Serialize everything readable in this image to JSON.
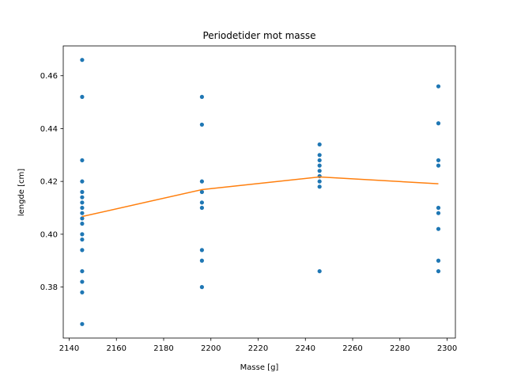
{
  "chart_data": {
    "type": "scatter",
    "title": "Periodetider mot masse",
    "xlabel": "Masse [g]",
    "ylabel": "lengde [cm]",
    "xlim": [
      2137.5,
      2303.5
    ],
    "ylim": [
      0.3607,
      0.4713
    ],
    "grid": false,
    "legend": "none",
    "xticks": [
      2140,
      2160,
      2180,
      2200,
      2220,
      2240,
      2260,
      2280,
      2300
    ],
    "yticks": [
      0.38,
      0.4,
      0.42,
      0.44,
      0.46
    ],
    "xtick_labels": [
      "2140",
      "2160",
      "2180",
      "2200",
      "2220",
      "2240",
      "2260",
      "2280",
      "2300"
    ],
    "ytick_labels": [
      "0.38",
      "0.40",
      "0.42",
      "0.44",
      "0.46"
    ],
    "series": [
      {
        "type": "scatter",
        "color": "#1f77b4",
        "points": [
          {
            "x": 2145.5,
            "y": 0.466
          },
          {
            "x": 2145.5,
            "y": 0.452
          },
          {
            "x": 2145.5,
            "y": 0.428
          },
          {
            "x": 2145.5,
            "y": 0.42
          },
          {
            "x": 2145.5,
            "y": 0.416
          },
          {
            "x": 2145.5,
            "y": 0.414
          },
          {
            "x": 2145.5,
            "y": 0.412
          },
          {
            "x": 2145.5,
            "y": 0.41
          },
          {
            "x": 2145.5,
            "y": 0.408
          },
          {
            "x": 2145.5,
            "y": 0.406
          },
          {
            "x": 2145.5,
            "y": 0.404
          },
          {
            "x": 2145.5,
            "y": 0.4
          },
          {
            "x": 2145.5,
            "y": 0.398
          },
          {
            "x": 2145.5,
            "y": 0.394
          },
          {
            "x": 2145.5,
            "y": 0.386
          },
          {
            "x": 2145.5,
            "y": 0.382
          },
          {
            "x": 2145.5,
            "y": 0.378
          },
          {
            "x": 2145.5,
            "y": 0.366
          },
          {
            "x": 2196.2,
            "y": 0.452
          },
          {
            "x": 2196.2,
            "y": 0.4415
          },
          {
            "x": 2196.2,
            "y": 0.42
          },
          {
            "x": 2196.2,
            "y": 0.416
          },
          {
            "x": 2196.2,
            "y": 0.412
          },
          {
            "x": 2196.2,
            "y": 0.41
          },
          {
            "x": 2196.2,
            "y": 0.394
          },
          {
            "x": 2196.2,
            "y": 0.39
          },
          {
            "x": 2196.2,
            "y": 0.38
          },
          {
            "x": 2246.0,
            "y": 0.434
          },
          {
            "x": 2246.0,
            "y": 0.43
          },
          {
            "x": 2246.0,
            "y": 0.428
          },
          {
            "x": 2246.0,
            "y": 0.426
          },
          {
            "x": 2246.0,
            "y": 0.424
          },
          {
            "x": 2246.0,
            "y": 0.422
          },
          {
            "x": 2246.0,
            "y": 0.42
          },
          {
            "x": 2246.0,
            "y": 0.418
          },
          {
            "x": 2246.0,
            "y": 0.386
          },
          {
            "x": 2296.3,
            "y": 0.456
          },
          {
            "x": 2296.3,
            "y": 0.442
          },
          {
            "x": 2296.3,
            "y": 0.428
          },
          {
            "x": 2296.3,
            "y": 0.426
          },
          {
            "x": 2296.3,
            "y": 0.41
          },
          {
            "x": 2296.3,
            "y": 0.408
          },
          {
            "x": 2296.3,
            "y": 0.402
          },
          {
            "x": 2296.3,
            "y": 0.39
          },
          {
            "x": 2296.3,
            "y": 0.386
          }
        ]
      },
      {
        "type": "line",
        "color": "#ff7f0e",
        "x": [
          2145.5,
          2196.2,
          2246.0,
          2296.3
        ],
        "values": [
          0.4067,
          0.4169,
          0.4217,
          0.4191
        ]
      }
    ]
  }
}
